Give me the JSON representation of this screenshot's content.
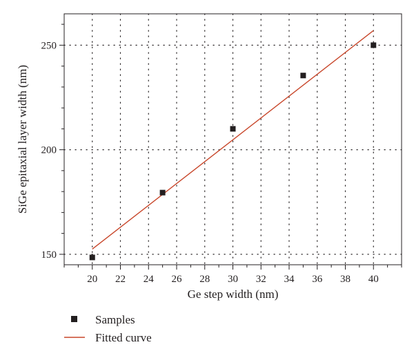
{
  "chart_data": {
    "type": "scatter",
    "xlabel": "Ge step width (nm)",
    "ylabel": "SiGe epitaxial layer width (nm)",
    "xlim": [
      18,
      42
    ],
    "ylim": [
      145,
      265
    ],
    "xticks": [
      20,
      22,
      24,
      26,
      28,
      30,
      32,
      34,
      36,
      38,
      40
    ],
    "yticks": [
      150,
      200,
      250
    ],
    "grid": true,
    "legend_position": "bottom",
    "series": [
      {
        "name": "Samples",
        "kind": "scatter",
        "marker": "square",
        "color": "#231f20",
        "x": [
          20,
          25,
          30,
          35,
          40
        ],
        "y": [
          148.5,
          179.5,
          210,
          235.5,
          250
        ]
      },
      {
        "name": "Fitted curve",
        "kind": "line",
        "color": "#c8462a",
        "x": [
          20,
          40
        ],
        "y": [
          152.5,
          257
        ]
      }
    ]
  }
}
